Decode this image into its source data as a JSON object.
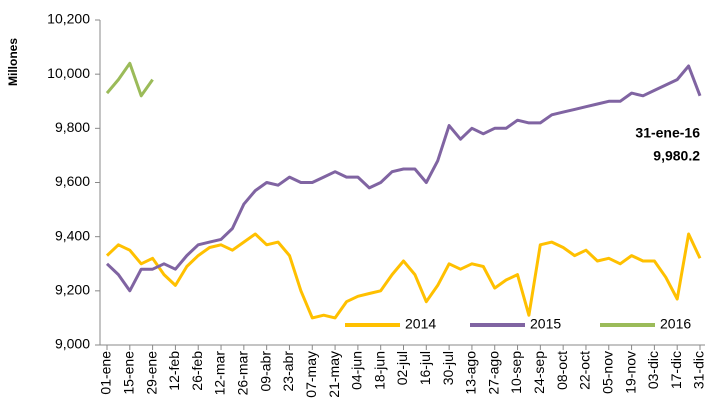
{
  "chart_data": {
    "type": "line",
    "y_label": "Millones",
    "annotations": [
      "31-ene-16",
      "9,980.2"
    ],
    "categories": [
      "01-ene",
      null,
      "15-ene",
      null,
      "29-ene",
      null,
      "12-feb",
      null,
      "26-feb",
      null,
      "12-mar",
      null,
      "26-mar",
      null,
      "09-abr",
      null,
      "23-abr",
      null,
      "07-may",
      null,
      "21-may",
      null,
      "04-jun",
      null,
      "18-jun",
      null,
      "02-jul",
      null,
      "16-jul",
      null,
      "30-jul",
      null,
      "13-ago",
      null,
      "27-ago",
      null,
      "10-sep",
      null,
      "24-sep",
      null,
      "08-oct",
      null,
      "22-oct",
      null,
      "05-nov",
      null,
      "19-nov",
      null,
      "03-dic",
      null,
      "17-dic",
      null,
      "31-dic"
    ],
    "series": [
      {
        "name": "2014",
        "color": "#ffc000",
        "values": [
          9330,
          9370,
          9350,
          9300,
          9320,
          9260,
          9220,
          9290,
          9330,
          9360,
          9370,
          9350,
          9380,
          9410,
          9370,
          9380,
          9330,
          9200,
          9100,
          9110,
          9100,
          9160,
          9180,
          9190,
          9200,
          9260,
          9310,
          9260,
          9160,
          9220,
          9300,
          9280,
          9300,
          9290,
          9210,
          9240,
          9260,
          9110,
          9370,
          9380,
          9360,
          9330,
          9350,
          9310,
          9320,
          9300,
          9330,
          9310,
          9310,
          9250,
          9170,
          9410,
          9320
        ]
      },
      {
        "name": "2015",
        "color": "#8064a2",
        "values": [
          9300,
          9260,
          9200,
          9280,
          9280,
          9300,
          9280,
          9330,
          9370,
          9380,
          9390,
          9430,
          9520,
          9570,
          9600,
          9590,
          9620,
          9600,
          9600,
          9620,
          9640,
          9620,
          9620,
          9580,
          9600,
          9640,
          9650,
          9650,
          9600,
          9680,
          9810,
          9760,
          9800,
          9780,
          9800,
          9800,
          9830,
          9820,
          9820,
          9850,
          9860,
          9870,
          9880,
          9890,
          9900,
          9900,
          9930,
          9920,
          9940,
          9960,
          9980,
          10030,
          9920
        ]
      },
      {
        "name": "2016",
        "color": "#9bbb59",
        "values": [
          9930,
          9980,
          10040,
          9920,
          9980,
          null,
          null,
          null,
          null,
          null,
          null,
          null,
          null,
          null,
          null,
          null,
          null,
          null,
          null,
          null,
          null,
          null,
          null,
          null,
          null,
          null,
          null,
          null,
          null,
          null,
          null,
          null,
          null,
          null,
          null,
          null,
          null,
          null,
          null,
          null,
          null,
          null,
          null,
          null,
          null,
          null,
          null,
          null,
          null,
          null,
          null,
          null,
          null
        ]
      }
    ],
    "ylim": [
      9000,
      10200
    ],
    "yticks": [
      {
        "value": 9000,
        "label": "9,000"
      },
      {
        "value": 9200,
        "label": "9,200"
      },
      {
        "value": 9400,
        "label": "9,400"
      },
      {
        "value": 9600,
        "label": "9,600"
      },
      {
        "value": 9800,
        "label": "9,800"
      },
      {
        "value": 10000,
        "label": "10,000"
      },
      {
        "value": 10200,
        "label": "10,200"
      }
    ],
    "grid": false,
    "legend": "bottom-right"
  }
}
